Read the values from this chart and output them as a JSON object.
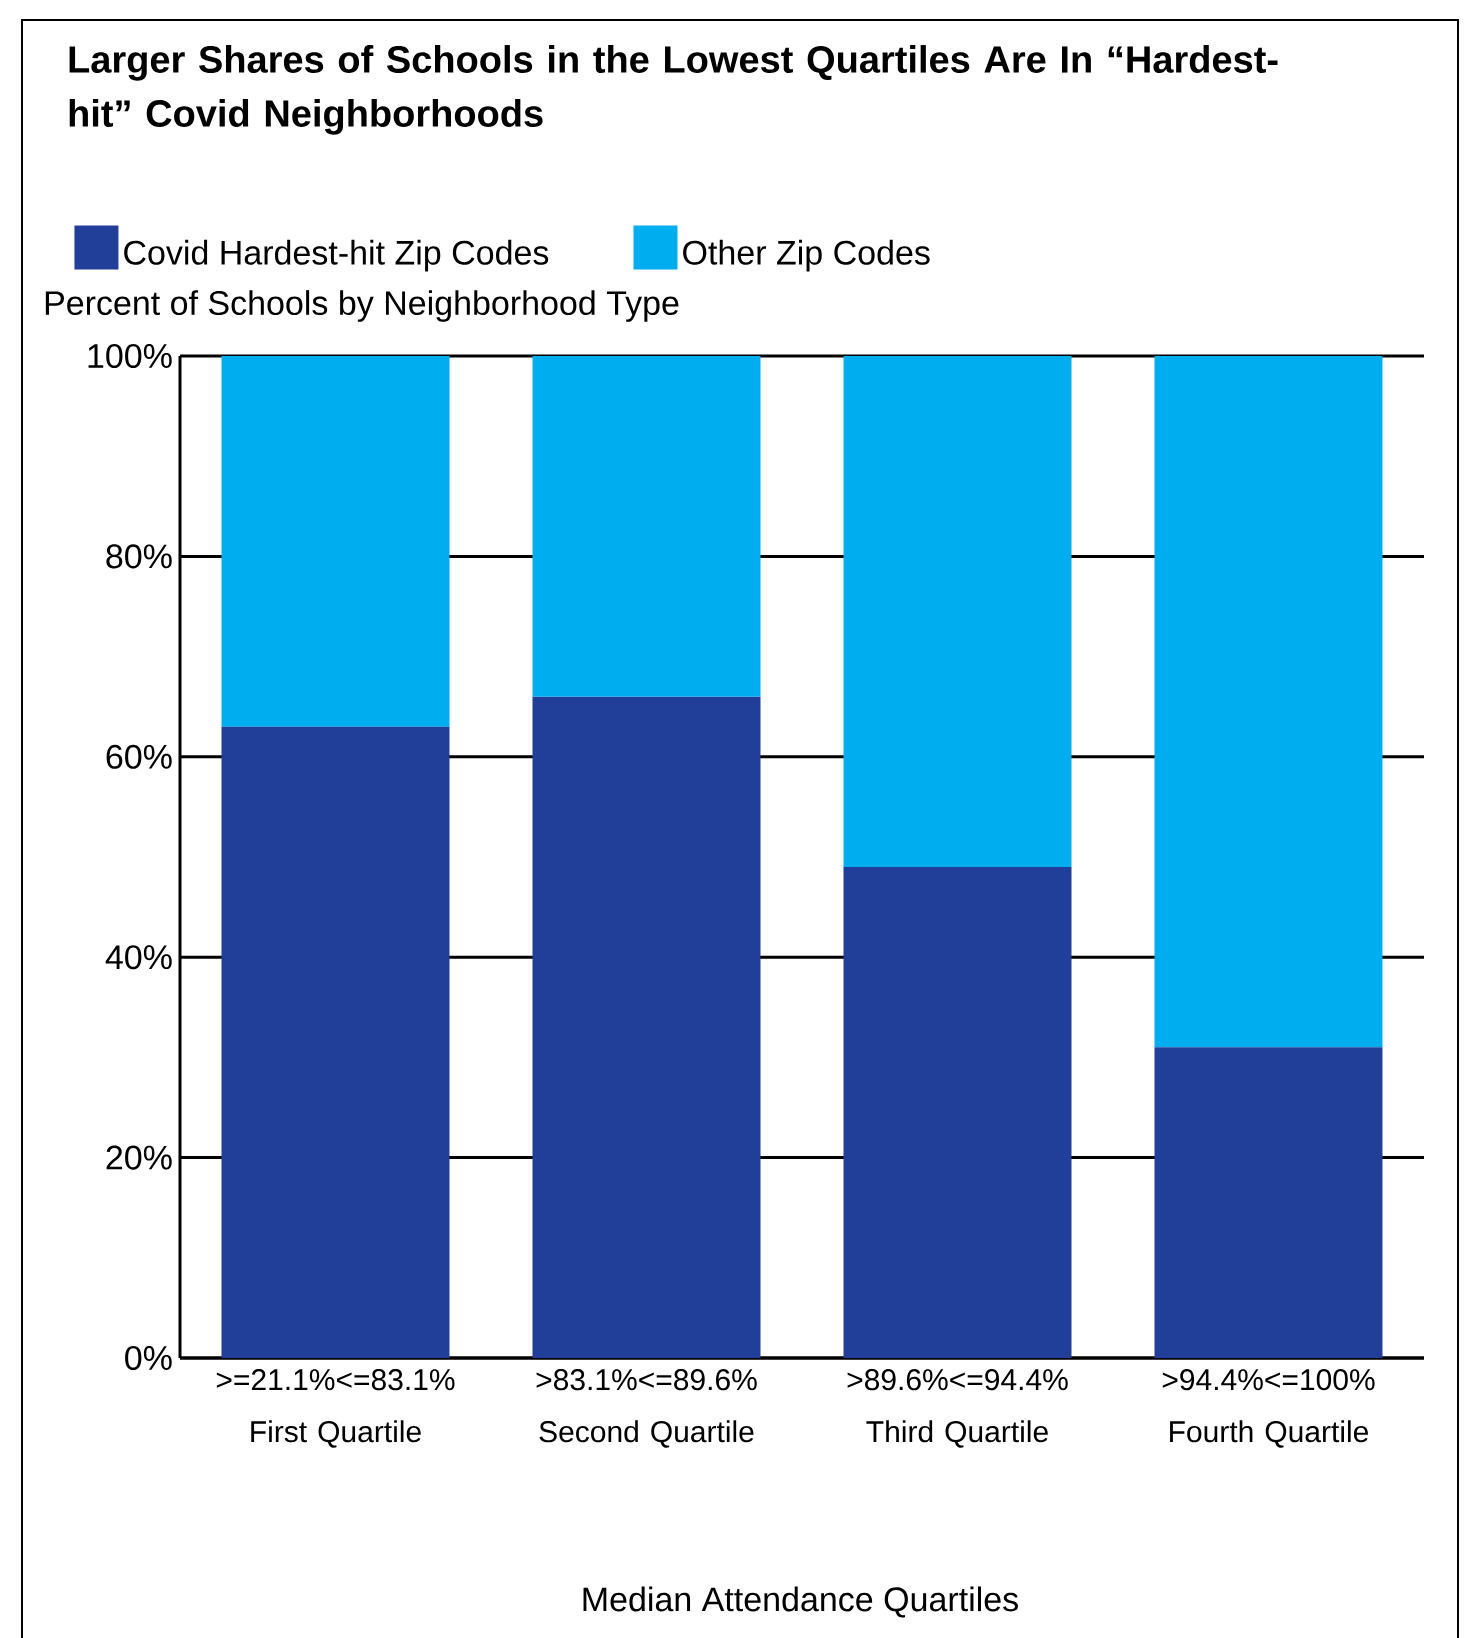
{
  "chart_data": {
    "type": "bar",
    "stacked": true,
    "title": "Larger Shares of Schools in the Lowest Quartiles Are In “Hardest-hit” Covid Neighborhoods",
    "ylabel": "Percent of Schools by Neighborhood Type",
    "xlabel": "Median Attendance Quartiles",
    "categories": [
      ">=21.1%<=83.1% First Quartile",
      ">83.1%<=89.6% Second Quartile",
      ">89.6%<=94.4% Third Quartile",
      ">94.4%<=100% Fourth Quartile"
    ],
    "series": [
      {
        "name": "Covid Hardest-hit Zip Codes",
        "color": "#213f99",
        "values": [
          63,
          66,
          49,
          31
        ]
      },
      {
        "name": "Other Zip Codes",
        "color": "#00adef",
        "values": [
          37,
          34,
          51,
          69
        ]
      }
    ],
    "ylim": [
      0,
      100
    ],
    "yticks": [
      {
        "value": 0,
        "label": "0%"
      },
      {
        "value": 20,
        "label": "20%"
      },
      {
        "value": 40,
        "label": "40%"
      },
      {
        "value": 60,
        "label": "60%"
      },
      {
        "value": 80,
        "label": "80%"
      },
      {
        "value": 100,
        "label": "100%"
      }
    ],
    "grid": "y",
    "legend": "top"
  }
}
